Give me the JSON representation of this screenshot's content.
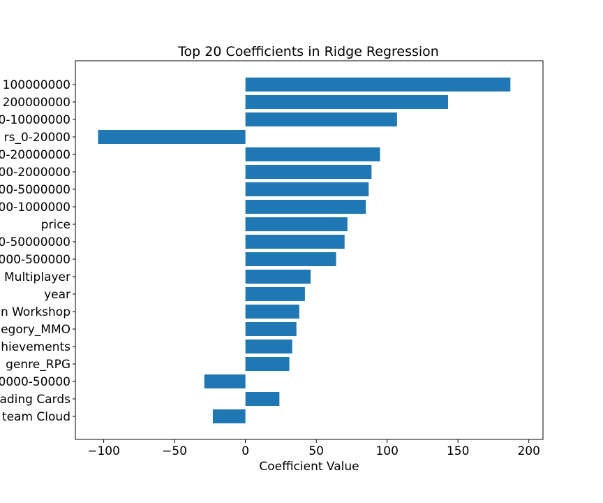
{
  "chart_data": {
    "type": "bar",
    "orientation": "horizontal",
    "title": "Top 20 Coefficients in Ridge Regression",
    "xlabel": "Coefficient Value",
    "ylabel": "",
    "xlim": [
      -120,
      210
    ],
    "xticks": [
      -100,
      -50,
      0,
      50,
      100,
      150,
      200
    ],
    "xtick_labels": [
      "−100",
      "−50",
      "0",
      "50",
      "100",
      "150",
      "200"
    ],
    "bar_color": "#1f77b4",
    "grid": false,
    "categories": [
      "100000000",
      "200000000",
      "0-10000000",
      "rs_0-20000",
      "0-20000000",
      "00-2000000",
      "00-5000000",
      "00-1000000",
      "price",
      "0-50000000",
      "000-500000",
      "Multiplayer",
      "year",
      "n Workshop",
      "egory_MMO",
      "hievements",
      "genre_RPG",
      "0000-50000",
      "ading Cards",
      "team Cloud"
    ],
    "values": [
      187,
      143,
      107,
      -104,
      95,
      89,
      87,
      85,
      72,
      70,
      64,
      46,
      42,
      38,
      36,
      33,
      31,
      -29,
      24,
      -23
    ]
  }
}
